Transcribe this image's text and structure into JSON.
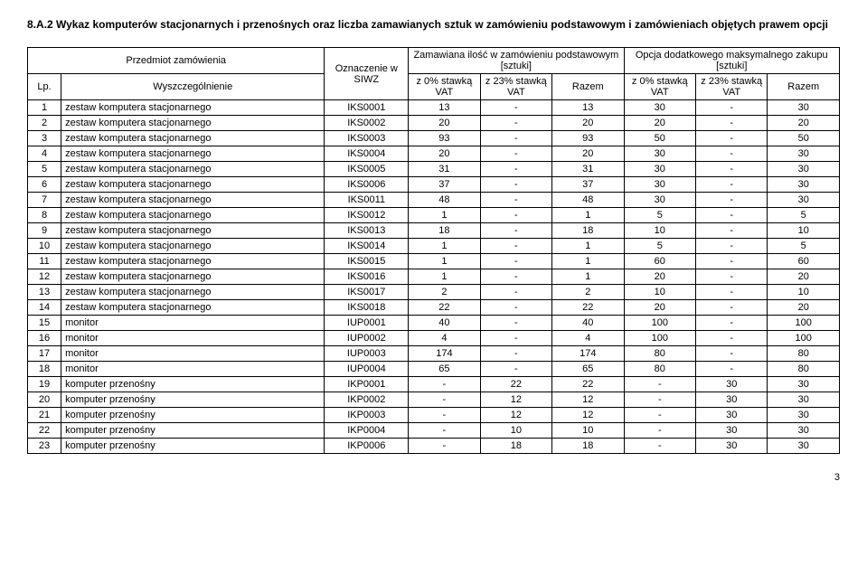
{
  "title": "8.A.2 Wykaz komputerów stacjonarnych i przenośnych oraz liczba zamawianych sztuk w zamówieniu podstawowym i zamówieniach objętych prawem opcji",
  "header": {
    "przedmiot": "Przedmiot zamówienia",
    "oznaczenie": "Oznaczenie w SIWZ",
    "zamawiana": "Zamawiana ilość w zamówieniu podstawowym [sztuki]",
    "opcja": "Opcja dodatkowego maksymalnego zakupu [sztuki]",
    "lp": "Lp.",
    "wyszcz": "Wyszczególnienie",
    "z0": "z 0% stawką VAT",
    "z23": "z 23% stawką VAT",
    "razem": "Razem"
  },
  "rows": [
    {
      "lp": "1",
      "desc": "zestaw komputera stacjonarnego",
      "code": "IKS0001",
      "a": "13",
      "b": "-",
      "c": "13",
      "d": "30",
      "e": "-",
      "f": "30"
    },
    {
      "lp": "2",
      "desc": "zestaw komputera stacjonarnego",
      "code": "IKS0002",
      "a": "20",
      "b": "-",
      "c": "20",
      "d": "20",
      "e": "-",
      "f": "20"
    },
    {
      "lp": "3",
      "desc": "zestaw komputera stacjonarnego",
      "code": "IKS0003",
      "a": "93",
      "b": "-",
      "c": "93",
      "d": "50",
      "e": "-",
      "f": "50"
    },
    {
      "lp": "4",
      "desc": "zestaw komputera stacjonarnego",
      "code": "IKS0004",
      "a": "20",
      "b": "-",
      "c": "20",
      "d": "30",
      "e": "-",
      "f": "30"
    },
    {
      "lp": "5",
      "desc": "zestaw komputera stacjonarnego",
      "code": "IKS0005",
      "a": "31",
      "b": "-",
      "c": "31",
      "d": "30",
      "e": "-",
      "f": "30"
    },
    {
      "lp": "6",
      "desc": "zestaw komputera stacjonarnego",
      "code": "IKS0006",
      "a": "37",
      "b": "-",
      "c": "37",
      "d": "30",
      "e": "-",
      "f": "30"
    },
    {
      "lp": "7",
      "desc": "zestaw komputera stacjonarnego",
      "code": "IKS0011",
      "a": "48",
      "b": "-",
      "c": "48",
      "d": "30",
      "e": "-",
      "f": "30"
    },
    {
      "lp": "8",
      "desc": "zestaw komputera stacjonarnego",
      "code": "IKS0012",
      "a": "1",
      "b": "-",
      "c": "1",
      "d": "5",
      "e": "-",
      "f": "5"
    },
    {
      "lp": "9",
      "desc": "zestaw komputera stacjonarnego",
      "code": "IKS0013",
      "a": "18",
      "b": "-",
      "c": "18",
      "d": "10",
      "e": "-",
      "f": "10"
    },
    {
      "lp": "10",
      "desc": "zestaw komputera stacjonarnego",
      "code": "IKS0014",
      "a": "1",
      "b": "-",
      "c": "1",
      "d": "5",
      "e": "-",
      "f": "5"
    },
    {
      "lp": "11",
      "desc": "zestaw komputera stacjonarnego",
      "code": "IKS0015",
      "a": "1",
      "b": "-",
      "c": "1",
      "d": "60",
      "e": "-",
      "f": "60"
    },
    {
      "lp": "12",
      "desc": "zestaw komputera stacjonarnego",
      "code": "IKS0016",
      "a": "1",
      "b": "-",
      "c": "1",
      "d": "20",
      "e": "-",
      "f": "20"
    },
    {
      "lp": "13",
      "desc": "zestaw komputera stacjonarnego",
      "code": "IKS0017",
      "a": "2",
      "b": "-",
      "c": "2",
      "d": "10",
      "e": "-",
      "f": "10"
    },
    {
      "lp": "14",
      "desc": "zestaw komputera stacjonarnego",
      "code": "IKS0018",
      "a": "22",
      "b": "-",
      "c": "22",
      "d": "20",
      "e": "-",
      "f": "20"
    },
    {
      "lp": "15",
      "desc": "monitor",
      "code": "IUP0001",
      "a": "40",
      "b": "-",
      "c": "40",
      "d": "100",
      "e": "-",
      "f": "100"
    },
    {
      "lp": "16",
      "desc": "monitor",
      "code": "IUP0002",
      "a": "4",
      "b": "-",
      "c": "4",
      "d": "100",
      "e": "-",
      "f": "100"
    },
    {
      "lp": "17",
      "desc": "monitor",
      "code": "IUP0003",
      "a": "174",
      "b": "-",
      "c": "174",
      "d": "80",
      "e": "-",
      "f": "80"
    },
    {
      "lp": "18",
      "desc": "monitor",
      "code": "IUP0004",
      "a": "65",
      "b": "-",
      "c": "65",
      "d": "80",
      "e": "-",
      "f": "80"
    },
    {
      "lp": "19",
      "desc": "komputer przenośny",
      "code": "IKP0001",
      "a": "-",
      "b": "22",
      "c": "22",
      "d": "-",
      "e": "30",
      "f": "30"
    },
    {
      "lp": "20",
      "desc": "komputer przenośny",
      "code": "IKP0002",
      "a": "-",
      "b": "12",
      "c": "12",
      "d": "-",
      "e": "30",
      "f": "30"
    },
    {
      "lp": "21",
      "desc": "komputer przenośny",
      "code": "IKP0003",
      "a": "-",
      "b": "12",
      "c": "12",
      "d": "-",
      "e": "30",
      "f": "30"
    },
    {
      "lp": "22",
      "desc": "komputer przenośny",
      "code": "IKP0004",
      "a": "-",
      "b": "10",
      "c": "10",
      "d": "-",
      "e": "30",
      "f": "30"
    },
    {
      "lp": "23",
      "desc": "komputer przenośny",
      "code": "IKP0006",
      "a": "-",
      "b": "18",
      "c": "18",
      "d": "-",
      "e": "30",
      "f": "30"
    }
  ],
  "page_number": "3"
}
